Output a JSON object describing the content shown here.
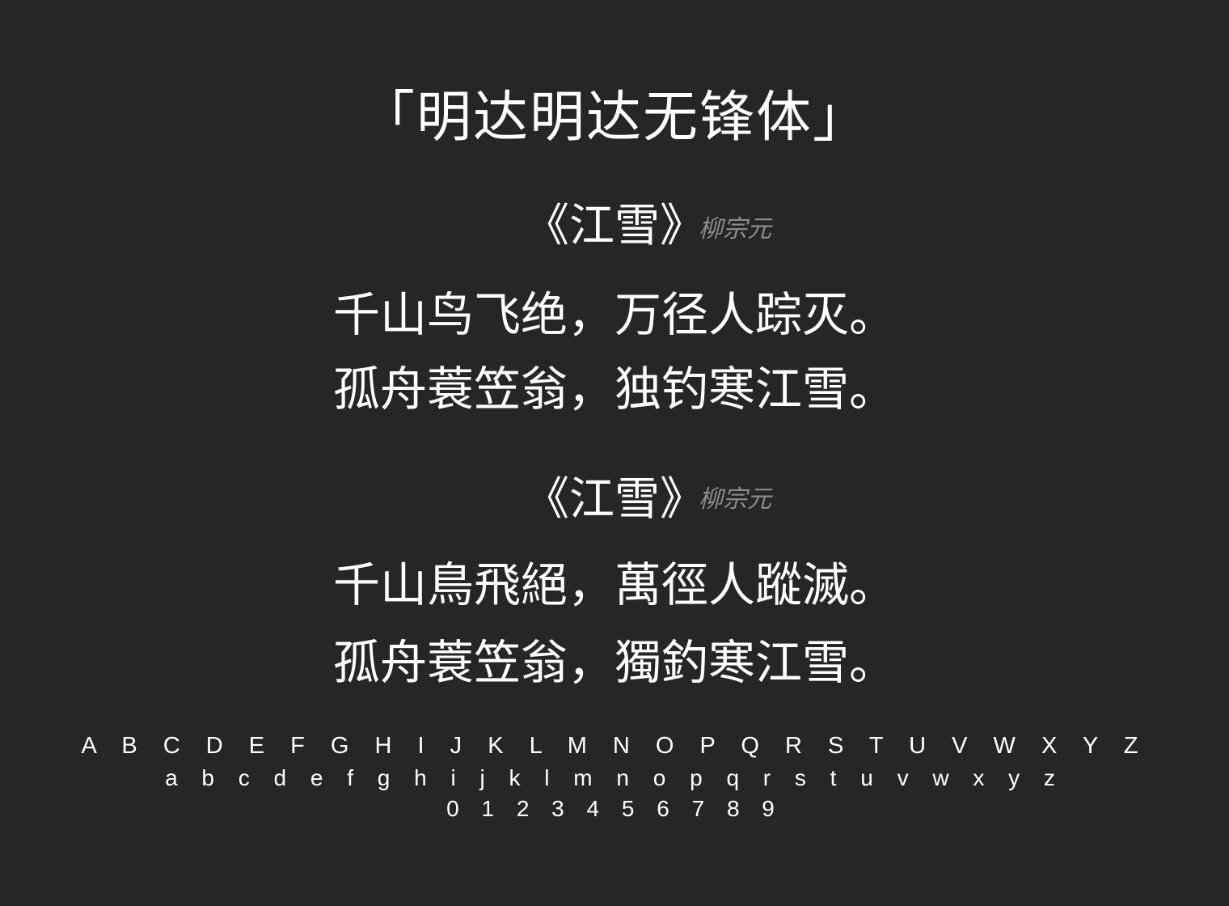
{
  "heading": "「明达明达无锋体」",
  "simplified": {
    "poem_title": "《江雪》",
    "author": "柳宗元",
    "line1": "千山鸟飞绝，万径人踪灭。",
    "line2": "孤舟蓑笠翁，独钓寒江雪。"
  },
  "traditional": {
    "poem_title": "《江雪》",
    "author": "柳宗元",
    "line1": "千山鳥飛絕，萬徑人蹤滅。",
    "line2": "孤舟蓑笠翁，獨釣寒江雪。"
  },
  "glyphs": {
    "uppercase": "A B C D E F G H I J K L M N O P Q R S T U V W X Y Z",
    "lowercase": "a b c d e f g h i j k l m n o p q r s t u v w x y z",
    "digits": "0 1 2 3 4 5 6 7 8 9"
  },
  "colors": {
    "background": "#262626",
    "text": "#ffffff",
    "author": "#8c8c8c"
  }
}
